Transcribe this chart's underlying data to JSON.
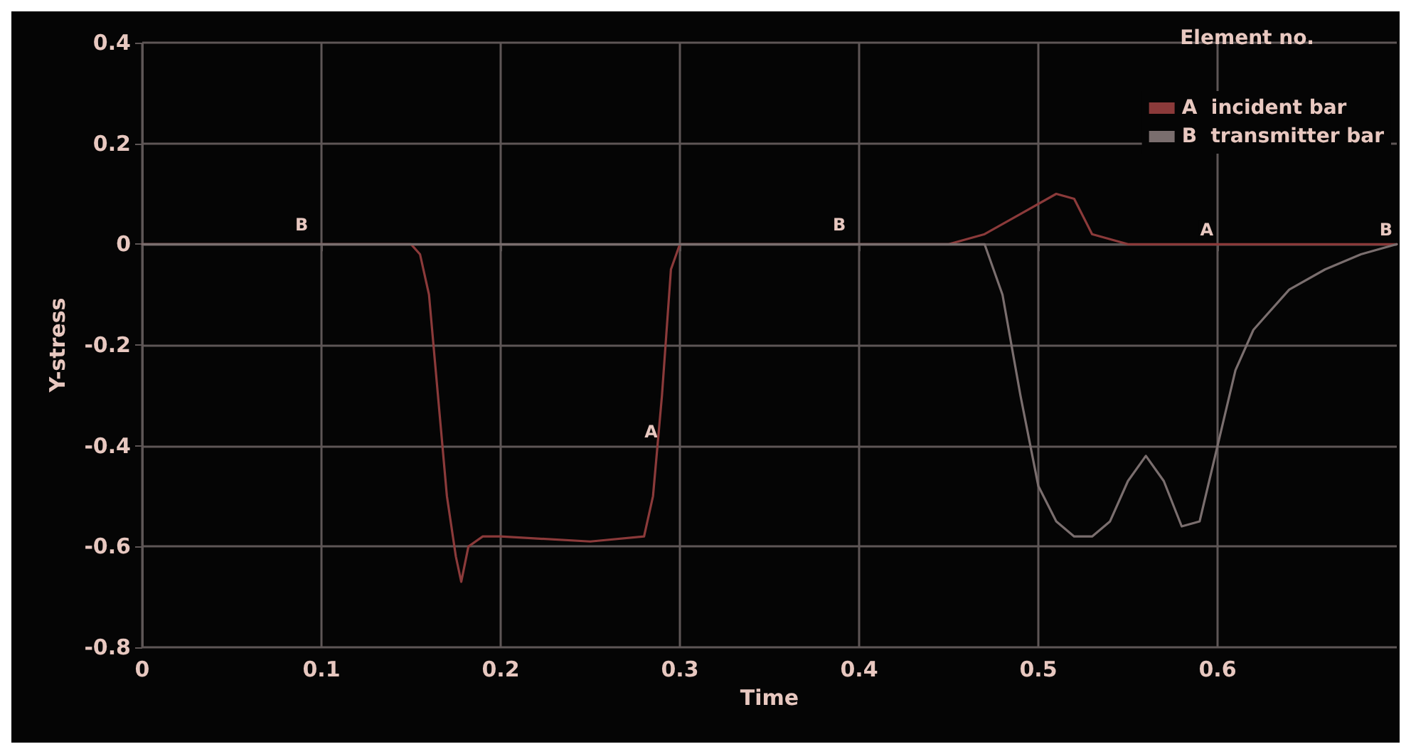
{
  "chart_data": {
    "type": "line",
    "xlabel": "Time",
    "ylabel": "Y-stress",
    "legend_title": "Element no.",
    "legend": "top right",
    "grid": true,
    "marker": "none",
    "line_style": "solid",
    "xlim": [
      0,
      0.7
    ],
    "xticks": [
      0,
      0.1,
      0.2,
      0.3,
      0.4,
      0.5,
      0.6
    ],
    "ylim": [
      -0.8,
      0.4
    ],
    "yticks": [
      -0.8,
      -0.6,
      -0.4,
      -0.2,
      0,
      0.2,
      0.4
    ],
    "series": [
      {
        "name": "A  incident bar",
        "color": "#8b3a3a",
        "x": [
          0,
          0.15,
          0.155,
          0.16,
          0.165,
          0.17,
          0.175,
          0.178,
          0.182,
          0.19,
          0.2,
          0.25,
          0.28,
          0.285,
          0.29,
          0.295,
          0.3,
          0.35,
          0.4,
          0.45,
          0.47,
          0.49,
          0.51,
          0.52,
          0.53,
          0.55,
          0.6,
          0.65,
          0.7
        ],
        "values": [
          0,
          0,
          -0.02,
          -0.1,
          -0.3,
          -0.5,
          -0.62,
          -0.67,
          -0.6,
          -0.58,
          -0.58,
          -0.59,
          -0.58,
          -0.5,
          -0.3,
          -0.05,
          0,
          0,
          0,
          0,
          0.02,
          0.06,
          0.1,
          0.09,
          0.02,
          0,
          0,
          0,
          0
        ]
      },
      {
        "name": "B  transmitter bar",
        "color": "#7a6e6e",
        "x": [
          0,
          0.45,
          0.47,
          0.48,
          0.49,
          0.5,
          0.51,
          0.52,
          0.53,
          0.54,
          0.55,
          0.56,
          0.57,
          0.58,
          0.59,
          0.6,
          0.61,
          0.62,
          0.64,
          0.66,
          0.68,
          0.7
        ],
        "values": [
          0,
          0,
          0,
          -0.1,
          -0.3,
          -0.48,
          -0.55,
          -0.58,
          -0.58,
          -0.55,
          -0.47,
          -0.42,
          -0.47,
          -0.56,
          -0.55,
          -0.4,
          -0.25,
          -0.17,
          -0.09,
          -0.05,
          -0.02,
          0
        ]
      }
    ],
    "annotations": [
      {
        "text": "B",
        "x": 0.095,
        "y": 0.01
      },
      {
        "text": "A",
        "x": 0.29,
        "y": -0.4
      },
      {
        "text": "B",
        "x": 0.395,
        "y": 0.01
      },
      {
        "text": "A",
        "x": 0.6,
        "y": 0
      },
      {
        "text": "B",
        "x": 0.7,
        "y": 0
      }
    ]
  }
}
